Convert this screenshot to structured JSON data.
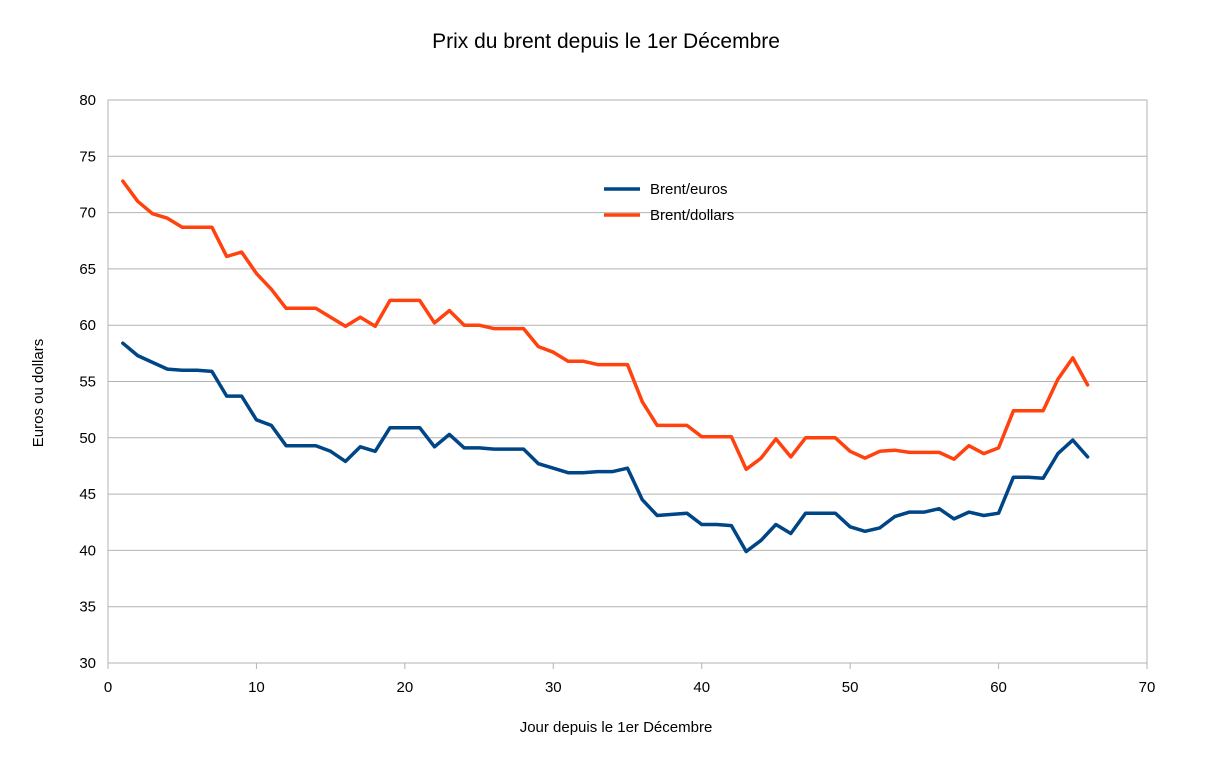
{
  "chart_data": {
    "type": "line",
    "title": "Prix du brent depuis le 1er Décembre",
    "xlabel": "Jour depuis le 1er Décembre",
    "ylabel": "Euros ou dollars",
    "xlim": [
      0,
      70
    ],
    "ylim": [
      30,
      80
    ],
    "x_ticks": [
      0,
      10,
      20,
      30,
      40,
      50,
      60,
      70
    ],
    "y_ticks": [
      30,
      35,
      40,
      45,
      50,
      55,
      60,
      65,
      70,
      75,
      80
    ],
    "grid": true,
    "legend_position": "top-center",
    "x": [
      1,
      2,
      3,
      4,
      5,
      6,
      7,
      8,
      9,
      10,
      11,
      12,
      13,
      14,
      15,
      16,
      17,
      18,
      19,
      20,
      21,
      22,
      23,
      24,
      25,
      26,
      27,
      28,
      29,
      30,
      31,
      32,
      33,
      34,
      35,
      36,
      37,
      38,
      39,
      40,
      41,
      42,
      43,
      44,
      45,
      46,
      47,
      48,
      49,
      50,
      51,
      52,
      53,
      54,
      55,
      56,
      57,
      58,
      59,
      60,
      61,
      62,
      63,
      64,
      65,
      66
    ],
    "series": [
      {
        "name": "Brent/euros",
        "color": "#004586",
        "values": [
          58.4,
          57.3,
          56.7,
          56.1,
          56.0,
          56.0,
          55.9,
          53.7,
          53.7,
          51.6,
          51.1,
          49.3,
          49.3,
          49.3,
          48.8,
          47.9,
          49.2,
          48.8,
          50.9,
          50.9,
          50.9,
          49.2,
          50.3,
          49.1,
          49.1,
          49.0,
          49.0,
          49.0,
          47.7,
          47.3,
          46.9,
          46.9,
          47.0,
          47.0,
          47.3,
          44.5,
          43.1,
          43.2,
          43.3,
          42.3,
          42.3,
          42.2,
          39.9,
          40.9,
          42.3,
          41.5,
          43.3,
          43.3,
          43.3,
          42.1,
          41.7,
          42.0,
          43.0,
          43.4,
          43.4,
          43.7,
          42.8,
          43.4,
          43.1,
          43.3,
          46.5,
          46.5,
          46.4,
          48.6,
          49.8,
          48.3
        ]
      },
      {
        "name": "Brent/dollars",
        "color": "#ff420e",
        "values": [
          72.8,
          71.0,
          69.9,
          69.5,
          68.7,
          68.7,
          68.7,
          66.1,
          66.5,
          64.6,
          63.2,
          61.5,
          61.5,
          61.5,
          60.7,
          59.9,
          60.7,
          59.9,
          62.2,
          62.2,
          62.2,
          60.2,
          61.3,
          60.0,
          60.0,
          59.7,
          59.7,
          59.7,
          58.1,
          57.6,
          56.8,
          56.8,
          56.5,
          56.5,
          56.5,
          53.2,
          51.1,
          51.1,
          51.1,
          50.1,
          50.1,
          50.1,
          47.2,
          48.2,
          49.9,
          48.3,
          50.0,
          50.0,
          50.0,
          48.8,
          48.2,
          48.8,
          48.9,
          48.7,
          48.7,
          48.7,
          48.1,
          49.3,
          48.6,
          49.1,
          52.4,
          52.4,
          52.4,
          55.2,
          57.1,
          54.7
        ]
      }
    ]
  }
}
